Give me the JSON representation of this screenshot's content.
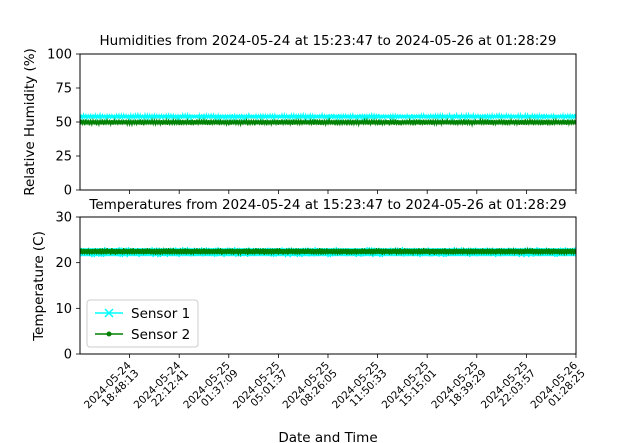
{
  "chart_data": [
    {
      "type": "line",
      "title": "Humidities from 2024-05-24 at 15:23:47 to 2024-05-26 at 01:28:29",
      "xlabel": "",
      "ylabel": "Relative Humidity (%)",
      "ylim": [
        0,
        100
      ],
      "yticks": [
        0,
        25,
        50,
        75,
        100
      ],
      "xlim": [
        "2024-05-24 15:23:47",
        "2024-05-26 01:28:29"
      ],
      "series": [
        {
          "name": "Sensor 1",
          "color": "#00ffff",
          "marker": "x",
          "band": [
            52,
            56
          ],
          "center": 54
        },
        {
          "name": "Sensor 2",
          "color": "#008000",
          "marker": "dot",
          "band": [
            47.5,
            52
          ],
          "center": 50
        }
      ]
    },
    {
      "type": "line",
      "title": "Temperatures from 2024-05-24 at 15:23:47 to 2024-05-26 at 01:28:29",
      "xlabel": "Date and Time",
      "ylabel": "Temperature (C)",
      "ylim": [
        0,
        30
      ],
      "yticks": [
        0,
        10,
        20,
        30
      ],
      "xlim": [
        "2024-05-24 15:23:47",
        "2024-05-26 01:28:29"
      ],
      "xticks": [
        [
          "2024-05-24",
          "18:48:13"
        ],
        [
          "2024-05-24",
          "22:12:41"
        ],
        [
          "2024-05-25",
          "01:37:09"
        ],
        [
          "2024-05-25",
          "05:01:37"
        ],
        [
          "2024-05-25",
          "08:26:05"
        ],
        [
          "2024-05-25",
          "11:50:33"
        ],
        [
          "2024-05-25",
          "15:15:01"
        ],
        [
          "2024-05-25",
          "18:39:29"
        ],
        [
          "2024-05-25",
          "22:03:57"
        ],
        [
          "2024-05-26",
          "01:28:25"
        ]
      ],
      "legend": "lower-left",
      "series": [
        {
          "name": "Sensor 1",
          "color": "#00ffff",
          "marker": "x",
          "band": [
            21.2,
            23.4
          ],
          "center": 22.3
        },
        {
          "name": "Sensor 2",
          "color": "#008000",
          "marker": "dot",
          "band": [
            21.7,
            23.2
          ],
          "center": 22.4
        }
      ]
    }
  ]
}
